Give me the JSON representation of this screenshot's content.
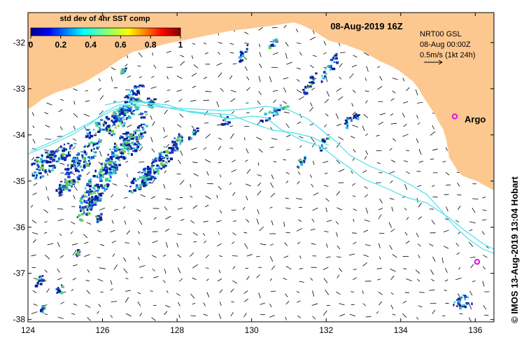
{
  "map": {
    "title": "08-Aug-2019 16Z",
    "credit": "© IMOS 13-Aug-2019 13:04 Hobart",
    "x_ticks": [
      "124",
      "126",
      "128",
      "130",
      "132",
      "134",
      "136"
    ],
    "y_ticks": [
      "-32",
      "-33",
      "-34",
      "-35",
      "-36",
      "-37",
      "-38"
    ],
    "x_range": [
      124,
      136.5
    ],
    "y_range": [
      -38.05,
      -31.35
    ]
  },
  "colorbar": {
    "title": "std dev of 4hr SST comp",
    "ticks": [
      "0",
      "0.2",
      "0.4",
      "0.6",
      "0.8",
      "1"
    ],
    "range": [
      0,
      1
    ]
  },
  "current_info": {
    "line1": "NRT00 GSL",
    "line2": "08-Aug 00:00Z",
    "line3": "0.5m/s (1kt 24h)"
  },
  "argo": {
    "label": "Argo",
    "floats": [
      {
        "lon": 135.45,
        "lat": -33.6
      },
      {
        "lon": 136.05,
        "lat": -36.75
      }
    ]
  },
  "colors": {
    "land": "#fcc890",
    "sst_low": "#0a1d9a",
    "drifter_track": "#4ee0e8",
    "argo": "#e010e0"
  }
}
